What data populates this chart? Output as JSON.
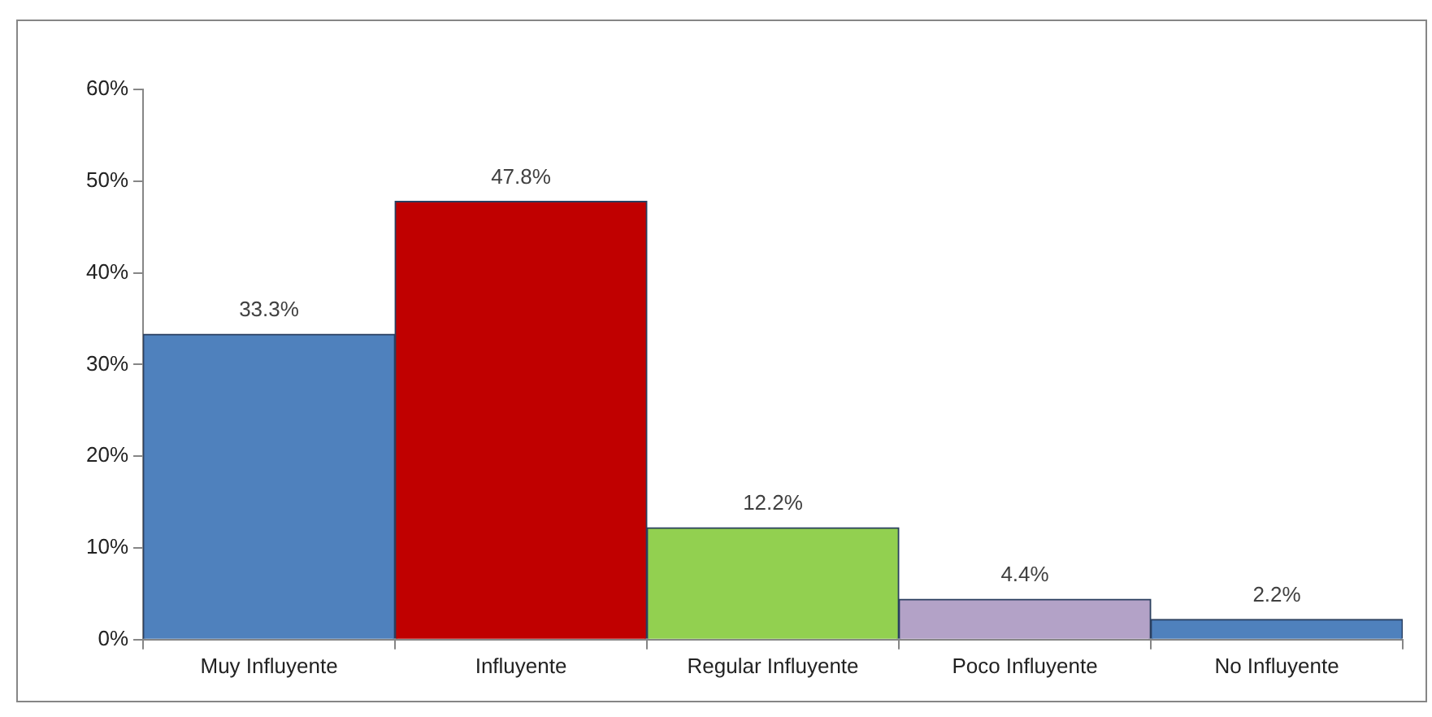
{
  "chart_data": {
    "type": "bar",
    "categories": [
      "Muy Influyente",
      "Influyente",
      "Regular Influyente",
      "Poco Influyente",
      "No Influyente"
    ],
    "values": [
      33.3,
      47.8,
      12.2,
      4.4,
      2.2
    ],
    "colors": [
      "#4f81bd",
      "#c00000",
      "#92d050",
      "#b3a2c7",
      "#4f81bd"
    ],
    "value_labels": [
      "33.3%",
      "47.8%",
      "12.2%",
      "4.4%",
      "2.2%"
    ],
    "ylim": [
      0,
      60
    ],
    "yticks": [
      {
        "value": 0,
        "label": "0%"
      },
      {
        "value": 10,
        "label": "10%"
      },
      {
        "value": 20,
        "label": "20%"
      },
      {
        "value": 30,
        "label": "30%"
      },
      {
        "value": 40,
        "label": "40%"
      },
      {
        "value": 50,
        "label": "50%"
      },
      {
        "value": 60,
        "label": "60%"
      }
    ],
    "grid": false,
    "legend": false
  }
}
